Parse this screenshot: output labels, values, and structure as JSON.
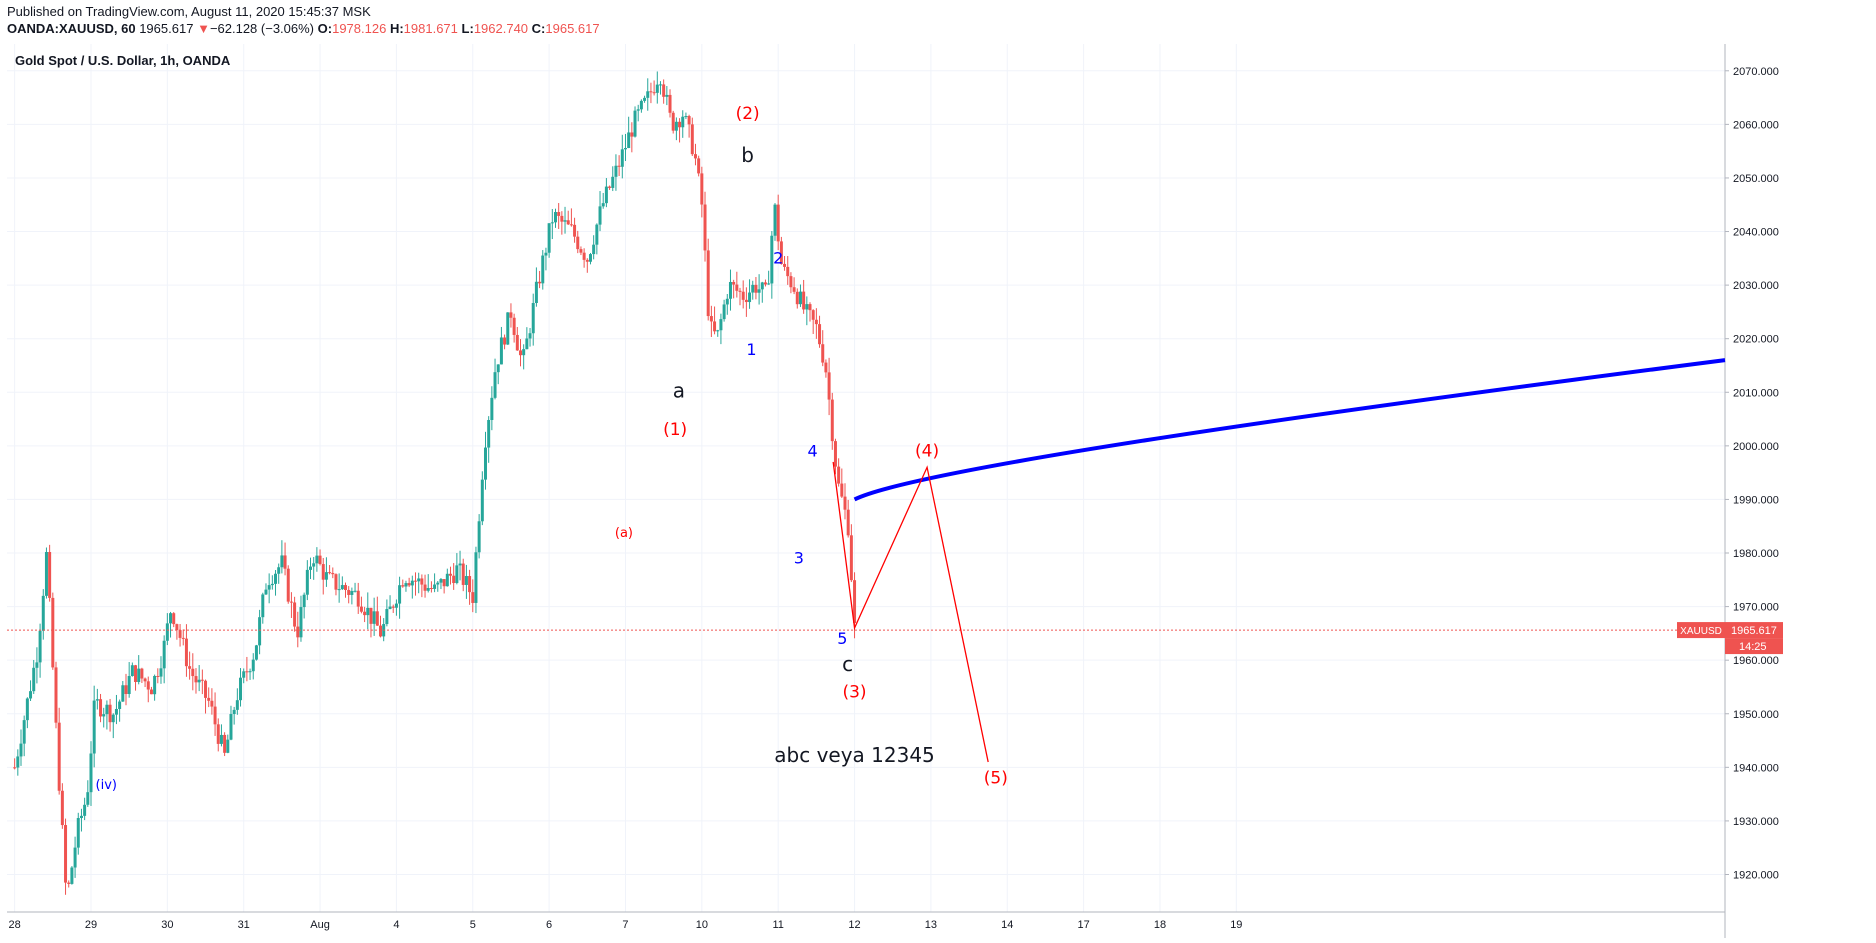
{
  "header": {
    "published": "Published on TradingView.com, August 11, 2020 15:45:37 MSK",
    "symbol": "OANDA:XAUUSD, 60",
    "last": "1965.617",
    "change_arrow": "▼",
    "change": "−62.128 (−3.06%)",
    "o_label": "O:",
    "o_value": "1978.126",
    "h_label": "H:",
    "h_value": "1981.671",
    "l_label": "L:",
    "l_value": "1962.740",
    "c_label": "C:",
    "c_value": "1965.617"
  },
  "pane_title": "Gold Spot / U.S. Dollar, 1h, OANDA",
  "colors": {
    "up": "#26a69a",
    "down": "#ef5350",
    "wave_red": "#ff0000",
    "wave_blue": "#0000ff",
    "trend": "#0000ff",
    "grid": "#f0f3fa"
  },
  "chart_data": {
    "type": "candlestick",
    "symbol": "XAUUSD",
    "timeframe": "1h",
    "ylim": [
      1913,
      2075
    ],
    "y_ticks": [
      1920,
      1930,
      1940,
      1950,
      1960,
      1970,
      1980,
      1990,
      2000,
      2010,
      2020,
      2030,
      2040,
      2050,
      2060,
      2070
    ],
    "y_tick_labels": [
      "1920.000",
      "1930.000",
      "1940.000",
      "1950.000",
      "1960.000",
      "1970.000",
      "1980.000",
      "1990.000",
      "2000.000",
      "2010.000",
      "2020.000",
      "2030.000",
      "2040.000",
      "2050.000",
      "2060.000",
      "2070.000"
    ],
    "x_range_days": [
      -0.1,
      22.4
    ],
    "x_ticks": [
      0,
      1,
      2,
      3,
      4,
      5,
      6,
      7,
      8,
      9,
      10,
      11,
      12,
      13,
      14,
      15,
      16,
      17,
      18,
      19,
      20,
      21,
      22
    ],
    "x_tick_labels": [
      "28",
      "29",
      "30",
      "31",
      "Aug",
      "4",
      "5",
      "6",
      "7",
      "10",
      "11",
      "12",
      "13",
      "14",
      "17",
      "18",
      "19"
    ],
    "x_tick_days": [
      0,
      1,
      2,
      3,
      4,
      5,
      6,
      7,
      8,
      9,
      10,
      11,
      12,
      13,
      14,
      15,
      16,
      17,
      18,
      19,
      20,
      21,
      22
    ],
    "x_label_days": [
      0,
      1,
      2,
      3,
      4,
      5,
      6,
      7,
      8,
      9,
      10,
      11,
      12,
      13,
      14,
      15,
      16
    ],
    "price_anchors": [
      [
        0.0,
        1940
      ],
      [
        0.3,
        1962
      ],
      [
        0.42,
        1980
      ],
      [
        0.55,
        1945
      ],
      [
        0.68,
        1915
      ],
      [
        0.82,
        1928
      ],
      [
        0.95,
        1935
      ],
      [
        1.05,
        1952
      ],
      [
        1.3,
        1950
      ],
      [
        1.55,
        1958
      ],
      [
        1.8,
        1955
      ],
      [
        1.95,
        1962
      ],
      [
        2.05,
        1970
      ],
      [
        2.3,
        1958
      ],
      [
        2.55,
        1952
      ],
      [
        2.75,
        1942
      ],
      [
        2.9,
        1953
      ],
      [
        3.15,
        1962
      ],
      [
        3.3,
        1975
      ],
      [
        3.5,
        1978
      ],
      [
        3.7,
        1965
      ],
      [
        3.9,
        1980
      ],
      [
        4.1,
        1975
      ],
      [
        4.5,
        1972
      ],
      [
        4.8,
        1965
      ],
      [
        5.1,
        1976
      ],
      [
        5.5,
        1973
      ],
      [
        5.8,
        1977
      ],
      [
        6.0,
        1972
      ],
      [
        6.15,
        2000
      ],
      [
        6.3,
        2015
      ],
      [
        6.5,
        2025
      ],
      [
        6.65,
        2015
      ],
      [
        6.85,
        2030
      ],
      [
        7.05,
        2043
      ],
      [
        7.3,
        2040
      ],
      [
        7.5,
        2035
      ],
      [
        7.7,
        2045
      ],
      [
        7.9,
        2052
      ],
      [
        8.1,
        2060
      ],
      [
        8.3,
        2065
      ],
      [
        8.45,
        2070
      ],
      [
        8.6,
        2060
      ],
      [
        8.75,
        2062
      ],
      [
        8.9,
        2055
      ],
      [
        9.0,
        2045
      ],
      [
        9.1,
        2022
      ],
      [
        9.2,
        2020
      ],
      [
        9.35,
        2030
      ],
      [
        9.55,
        2028
      ],
      [
        9.7,
        2030
      ],
      [
        9.85,
        2028
      ],
      [
        9.95,
        2045
      ],
      [
        10.05,
        2033
      ],
      [
        10.2,
        2030
      ],
      [
        10.35,
        2025
      ],
      [
        10.5,
        2022
      ],
      [
        10.62,
        2015
      ],
      [
        10.78,
        1993
      ],
      [
        10.92,
        1985
      ],
      [
        11.0,
        1966
      ]
    ],
    "last_price": 1965.617,
    "last_price_label": "XAUUSD",
    "last_price_value": "1965.617",
    "countdown": "14:25",
    "trendline": {
      "from": [
        11.0,
        1990
      ],
      "through": [
        12.0,
        1997
      ],
      "to": [
        22.4,
        2016
      ]
    },
    "projection": [
      [
        10.72,
        1997
      ],
      [
        11.0,
        1966
      ],
      [
        11.95,
        1996
      ],
      [
        12.75,
        1941
      ]
    ],
    "annotations": [
      {
        "text": "(2)",
        "x": 9.6,
        "y": 2061,
        "color": "red",
        "size": 17
      },
      {
        "text": "b",
        "x": 9.6,
        "y": 2053,
        "color": "black",
        "size": 20
      },
      {
        "text": "a",
        "x": 8.7,
        "y": 2009,
        "color": "black",
        "size": 20
      },
      {
        "text": "(1)",
        "x": 8.65,
        "y": 2002,
        "color": "red",
        "size": 17
      },
      {
        "text": "2",
        "x": 10.0,
        "y": 2034,
        "color": "blue",
        "size": 16
      },
      {
        "text": "1",
        "x": 9.65,
        "y": 2017,
        "color": "blue",
        "size": 16
      },
      {
        "text": "4",
        "x": 10.45,
        "y": 1998,
        "color": "blue",
        "size": 16
      },
      {
        "text": "(a)",
        "x": 7.98,
        "y": 1983,
        "color": "red",
        "size": 13
      },
      {
        "text": "3",
        "x": 10.27,
        "y": 1978,
        "color": "blue",
        "size": 16
      },
      {
        "text": "5",
        "x": 10.84,
        "y": 1963,
        "color": "blue",
        "size": 16
      },
      {
        "text": "c",
        "x": 10.91,
        "y": 1958,
        "color": "black",
        "size": 20
      },
      {
        "text": "(3)",
        "x": 11.0,
        "y": 1953,
        "color": "red",
        "size": 17
      },
      {
        "text": "(4)",
        "x": 11.95,
        "y": 1998,
        "color": "red",
        "size": 17
      },
      {
        "text": "(5)",
        "x": 12.85,
        "y": 1937,
        "color": "red",
        "size": 17
      },
      {
        "text": "(iv)",
        "x": 1.2,
        "y": 1936,
        "color": "blue",
        "size": 13
      },
      {
        "text": "abc veya 12345",
        "x": 11.0,
        "y": 1941,
        "color": "black",
        "size": 20
      }
    ]
  }
}
